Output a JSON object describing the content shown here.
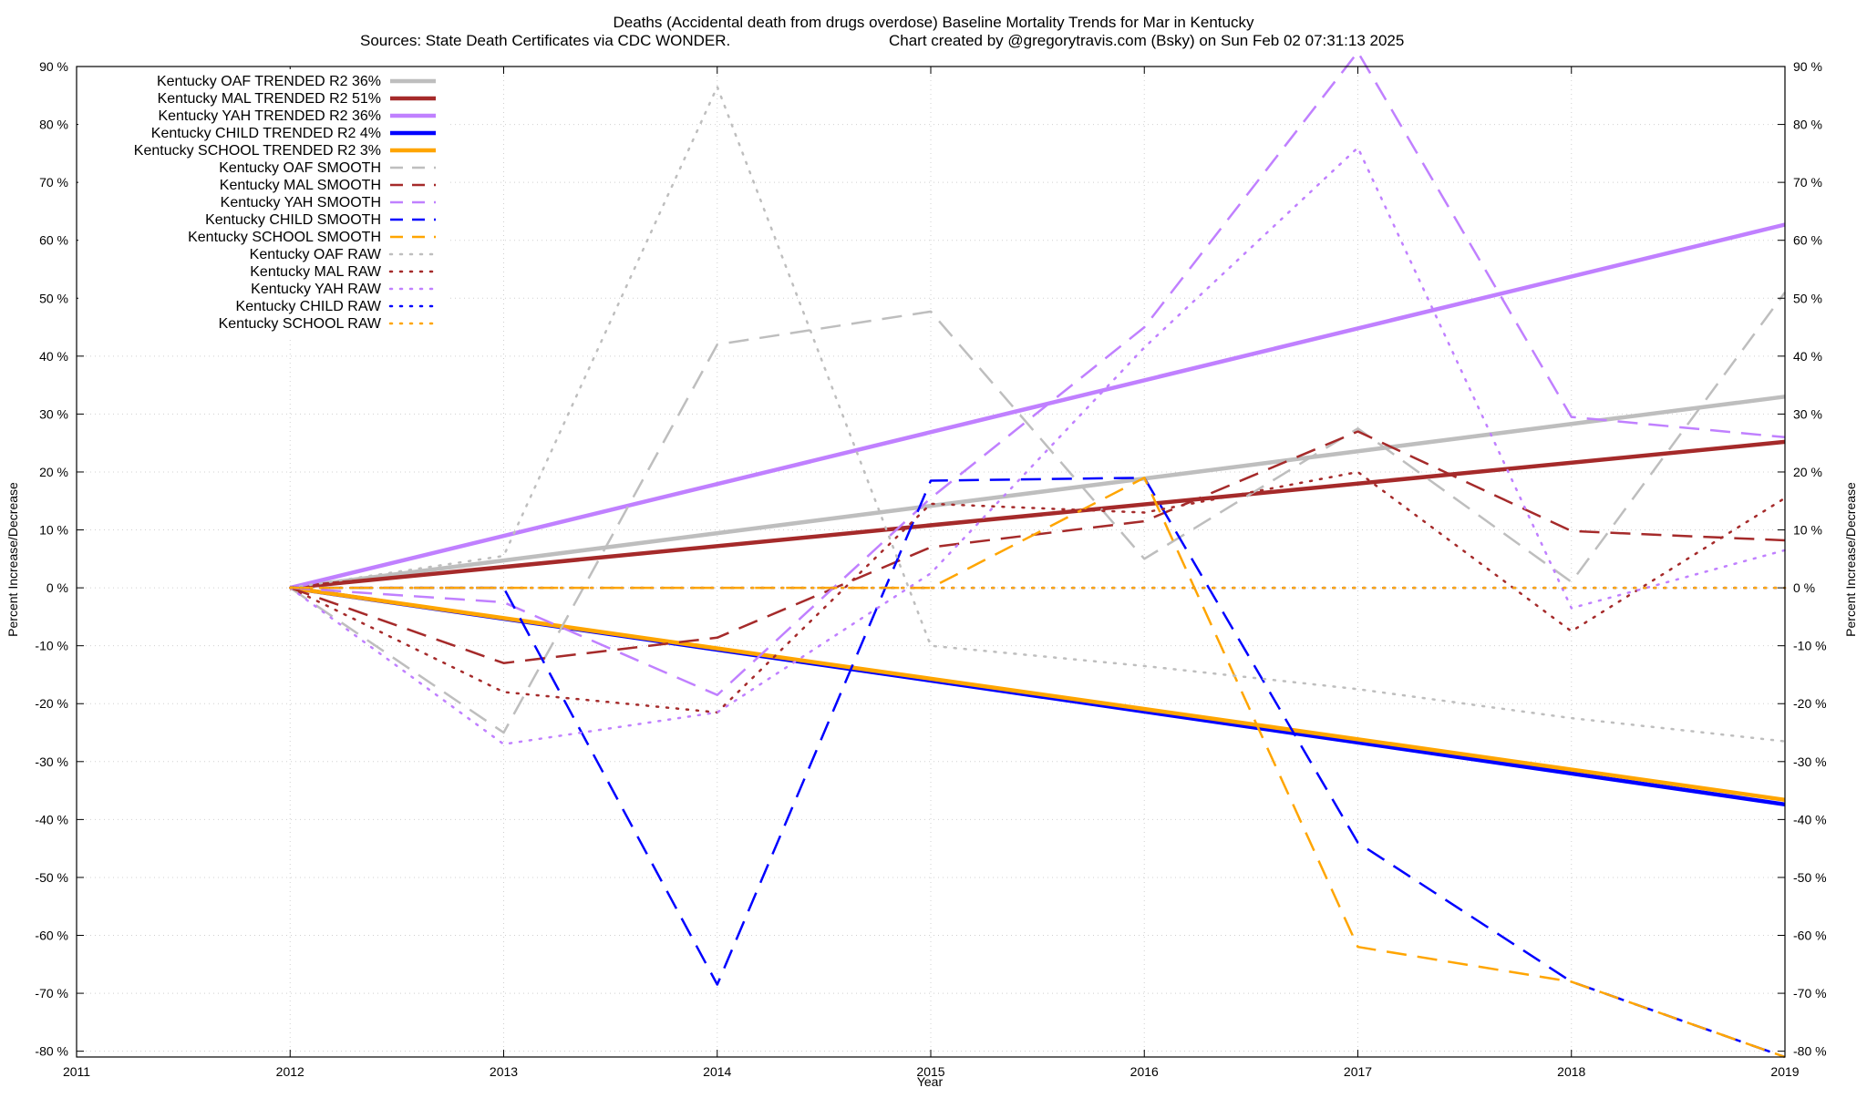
{
  "chart_data": {
    "type": "line",
    "title": "Deaths (Accidental death from drugs overdose)  Baseline Mortality Trends for Mar in Kentucky",
    "subtitle_left": "Sources: State Death Certificates via CDC WONDER.",
    "subtitle_right": "Chart created by @gregorytravis.com (Bsky) on Sun Feb 02 07:31:13 2025",
    "xlabel": "Year",
    "ylabel": "Percent Increase/Decrease",
    "y2label": "Percent Increase/Decrease",
    "xlim": [
      2011,
      2019
    ],
    "ylim": [
      -81,
      90
    ],
    "x_ticks": [
      "2011",
      "2012",
      "2013",
      "2014",
      "2015",
      "2016",
      "2017",
      "2018",
      "2019"
    ],
    "y_ticks": [
      {
        "v": 90,
        "label": "90 %"
      },
      {
        "v": 80,
        "label": "80 %"
      },
      {
        "v": 70,
        "label": "70 %"
      },
      {
        "v": 60,
        "label": "60 %"
      },
      {
        "v": 50,
        "label": "50 %"
      },
      {
        "v": 40,
        "label": "40 %"
      },
      {
        "v": 30,
        "label": "30 %"
      },
      {
        "v": 20,
        "label": "20 %"
      },
      {
        "v": 10,
        "label": "10 %"
      },
      {
        "v": 0,
        "label": "0 %"
      },
      {
        "v": -10,
        "label": "-10 %"
      },
      {
        "v": -20,
        "label": "-20 %"
      },
      {
        "v": -30,
        "label": "-30 %"
      },
      {
        "v": -40,
        "label": "-40 %"
      },
      {
        "v": -50,
        "label": "-50 %"
      },
      {
        "v": -60,
        "label": "-60 %"
      },
      {
        "v": -70,
        "label": "-70 %"
      },
      {
        "v": -80,
        "label": "-80 %"
      }
    ],
    "grid": true,
    "legend_position": "top-left",
    "series": [
      {
        "name": "Kentucky OAF TRENDED R2  36%",
        "color": "#bebebe",
        "style": "solid",
        "width": 4.5,
        "x": [
          2012,
          2019
        ],
        "y": [
          0,
          33
        ]
      },
      {
        "name": "Kentucky MAL TRENDED R2  51%",
        "color": "#a52a2a",
        "style": "solid",
        "width": 4.5,
        "x": [
          2012,
          2019
        ],
        "y": [
          0,
          25.2
        ]
      },
      {
        "name": "Kentucky YAH TRENDED R2  36%",
        "color": "#c080ff",
        "style": "solid",
        "width": 4.5,
        "x": [
          2012,
          2019
        ],
        "y": [
          0,
          62.7
        ]
      },
      {
        "name": "Kentucky CHILD TRENDED R2  4%",
        "color": "#0000ff",
        "style": "solid",
        "width": 4.5,
        "x": [
          2012,
          2019
        ],
        "y": [
          0,
          -37.4
        ]
      },
      {
        "name": "Kentucky SCHOOL TRENDED R2  3%",
        "color": "#ffa500",
        "style": "solid",
        "width": 4.5,
        "x": [
          2012,
          2019
        ],
        "y": [
          0,
          -36.6
        ]
      },
      {
        "name": "Kentucky OAF SMOOTH",
        "color": "#bebebe",
        "style": "dash",
        "width": 2.5,
        "x": [
          2012,
          2013,
          2014,
          2015,
          2016,
          2017,
          2018,
          2019
        ],
        "y": [
          0,
          -25,
          42,
          47.7,
          5,
          27.5,
          1,
          51
        ]
      },
      {
        "name": "Kentucky MAL SMOOTH",
        "color": "#a52a2a",
        "style": "dash",
        "width": 2.5,
        "x": [
          2012,
          2013,
          2014,
          2015,
          2016,
          2017,
          2018,
          2019
        ],
        "y": [
          0,
          -13,
          -8.6,
          7,
          11.5,
          27,
          9.8,
          8.2
        ]
      },
      {
        "name": "Kentucky YAH SMOOTH",
        "color": "#c080ff",
        "style": "dash",
        "width": 2.5,
        "x": [
          2012,
          2013,
          2014,
          2015,
          2016,
          2017,
          2018,
          2019
        ],
        "y": [
          0,
          -2.5,
          -18.5,
          15.5,
          45,
          92.5,
          29.5,
          26
        ]
      },
      {
        "name": "Kentucky CHILD SMOOTH",
        "color": "#0000ff",
        "style": "dash",
        "width": 2.5,
        "x": [
          2012,
          2013,
          2014,
          2015,
          2016,
          2017,
          2018,
          2019
        ],
        "y": [
          0,
          0,
          -68.5,
          18.5,
          19,
          -44,
          -68,
          -81
        ]
      },
      {
        "name": "Kentucky SCHOOL SMOOTH",
        "color": "#ffa500",
        "style": "dash",
        "width": 2.5,
        "x": [
          2012,
          2013,
          2014,
          2015,
          2016,
          2017,
          2018,
          2019
        ],
        "y": [
          0,
          0,
          0,
          0,
          19,
          -62,
          -68,
          -81
        ]
      },
      {
        "name": "Kentucky OAF RAW",
        "color": "#bebebe",
        "style": "dot",
        "width": 2.5,
        "x": [
          2012,
          2013,
          2014,
          2015,
          2016,
          2017,
          2018,
          2019
        ],
        "y": [
          0,
          5.5,
          86.5,
          -10,
          -13.5,
          -17.5,
          -22.5,
          -26.5
        ]
      },
      {
        "name": "Kentucky MAL RAW",
        "color": "#a52a2a",
        "style": "dot",
        "width": 2.5,
        "x": [
          2012,
          2013,
          2014,
          2015,
          2016,
          2017,
          2018,
          2019
        ],
        "y": [
          0,
          -18,
          -21.5,
          14.5,
          13,
          20,
          -7.5,
          15.5
        ]
      },
      {
        "name": "Kentucky YAH RAW",
        "color": "#c080ff",
        "style": "dot",
        "width": 2.5,
        "x": [
          2012,
          2013,
          2014,
          2015,
          2016,
          2017,
          2018,
          2019
        ],
        "y": [
          0,
          -27,
          -21.5,
          2.5,
          41.5,
          76,
          -3.5,
          6.5
        ]
      },
      {
        "name": "Kentucky CHILD RAW",
        "color": "#0000ff",
        "style": "dot",
        "width": 2.5,
        "x": [
          2012,
          2013,
          2014,
          2015,
          2016,
          2017,
          2018,
          2019
        ],
        "y": [
          0,
          0,
          0,
          0,
          0,
          0,
          0,
          0
        ]
      },
      {
        "name": "Kentucky SCHOOL RAW",
        "color": "#ffa500",
        "style": "dot",
        "width": 2.5,
        "x": [
          2012,
          2013,
          2014,
          2015,
          2016,
          2017,
          2018,
          2019
        ],
        "y": [
          0,
          0,
          0,
          0,
          0,
          0,
          0,
          0
        ]
      }
    ]
  }
}
